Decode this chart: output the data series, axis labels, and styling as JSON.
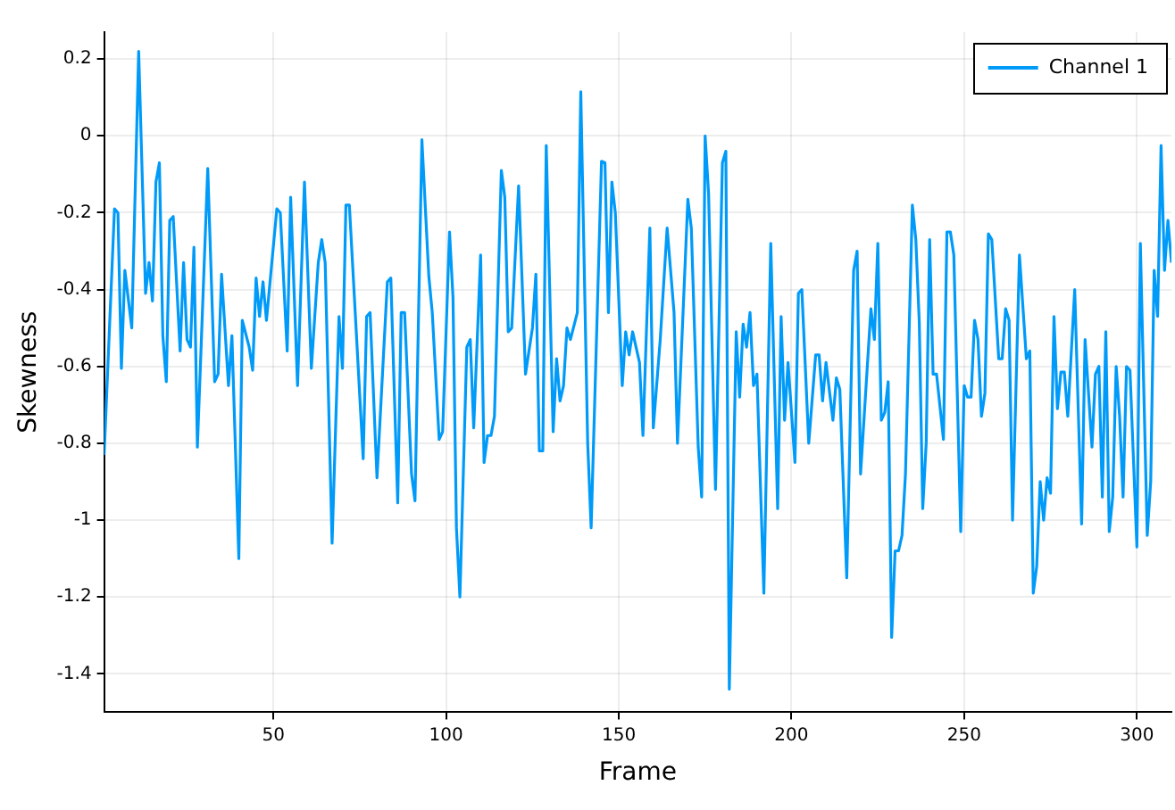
{
  "chart_data": {
    "type": "line",
    "xlabel": "Frame",
    "ylabel": "Skewness",
    "xlim": [
      1,
      310
    ],
    "xticks": [
      50,
      100,
      150,
      200,
      250,
      300
    ],
    "ylim": [
      -1.5,
      0.27
    ],
    "yticks": [
      -1.4,
      -1.2,
      -1,
      -0.8,
      -0.6,
      -0.4,
      -0.2,
      0,
      0.2
    ],
    "grid": true,
    "legend": "top right",
    "marker": "none",
    "line_style": "solid",
    "series": [
      {
        "name": "Channel 1",
        "color": "#009af9",
        "x": [
          1,
          4,
          5,
          6,
          7,
          9,
          11,
          13,
          14,
          15,
          16,
          17,
          18,
          19,
          20,
          21,
          23,
          24,
          25,
          26,
          27,
          28,
          31,
          33,
          34,
          35,
          37,
          38,
          40,
          41,
          43,
          44,
          45,
          46,
          47,
          48,
          51,
          52,
          54,
          55,
          57,
          59,
          61,
          63,
          64,
          65,
          67,
          69,
          70,
          71,
          72,
          76,
          77,
          78,
          80,
          83,
          84,
          86,
          87,
          88,
          90,
          91,
          93,
          95,
          96,
          98,
          99,
          101,
          102,
          103,
          104,
          106,
          107,
          108,
          110,
          111,
          112,
          113,
          114,
          116,
          117,
          118,
          119,
          121,
          123,
          125,
          126,
          127,
          128,
          129,
          131,
          132,
          133,
          134,
          135,
          136,
          138,
          139,
          141,
          142,
          145,
          146,
          147,
          148,
          149,
          151,
          152,
          153,
          154,
          156,
          157,
          159,
          160,
          162,
          164,
          166,
          167,
          170,
          171,
          173,
          174,
          175,
          176,
          178,
          180,
          181,
          182,
          184,
          185,
          186,
          187,
          188,
          189,
          190,
          192,
          194,
          196,
          197,
          198,
          199,
          201,
          202,
          203,
          205,
          207,
          208,
          209,
          210,
          212,
          213,
          214,
          216,
          218,
          219,
          220,
          223,
          224,
          225,
          226,
          227,
          228,
          229,
          230,
          231,
          232,
          233,
          235,
          236,
          237,
          238,
          239,
          240,
          241,
          242,
          244,
          245,
          246,
          247,
          249,
          250,
          251,
          252,
          253,
          254,
          255,
          256,
          257,
          258,
          260,
          261,
          262,
          263,
          264,
          266,
          268,
          269,
          270,
          271,
          272,
          273,
          274,
          275,
          276,
          277,
          278,
          279,
          280,
          282,
          284,
          285,
          287,
          288,
          289,
          290,
          291,
          292,
          293,
          294,
          295,
          296,
          297,
          298,
          300,
          301,
          303,
          304,
          305,
          306,
          307,
          308,
          309,
          310
        ],
        "values": [
          -0.83,
          -0.19,
          -0.2,
          -0.605,
          -0.35,
          -0.5,
          0.22,
          -0.41,
          -0.33,
          -0.43,
          -0.12,
          -0.07,
          -0.52,
          -0.64,
          -0.22,
          -0.21,
          -0.56,
          -0.33,
          -0.53,
          -0.55,
          -0.29,
          -0.81,
          -0.085,
          -0.64,
          -0.62,
          -0.36,
          -0.65,
          -0.52,
          -1.1,
          -0.48,
          -0.55,
          -0.61,
          -0.37,
          -0.47,
          -0.38,
          -0.48,
          -0.19,
          -0.2,
          -0.56,
          -0.16,
          -0.65,
          -0.12,
          -0.605,
          -0.33,
          -0.27,
          -0.33,
          -1.06,
          -0.47,
          -0.605,
          -0.18,
          -0.18,
          -0.84,
          -0.47,
          -0.46,
          -0.89,
          -0.38,
          -0.37,
          -0.955,
          -0.46,
          -0.46,
          -0.88,
          -0.95,
          -0.01,
          -0.365,
          -0.46,
          -0.79,
          -0.77,
          -0.25,
          -0.42,
          -1.02,
          -1.2,
          -0.55,
          -0.53,
          -0.76,
          -0.31,
          -0.85,
          -0.78,
          -0.78,
          -0.73,
          -0.09,
          -0.16,
          -0.51,
          -0.5,
          -0.13,
          -0.62,
          -0.5,
          -0.36,
          -0.82,
          -0.82,
          -0.025,
          -0.77,
          -0.58,
          -0.69,
          -0.65,
          -0.5,
          -0.53,
          -0.46,
          0.115,
          -0.8,
          -1.02,
          -0.066,
          -0.07,
          -0.46,
          -0.12,
          -0.2,
          -0.65,
          -0.51,
          -0.57,
          -0.51,
          -0.59,
          -0.78,
          -0.24,
          -0.76,
          -0.53,
          -0.24,
          -0.46,
          -0.8,
          -0.165,
          -0.24,
          -0.81,
          -0.94,
          0,
          -0.15,
          -0.92,
          -0.07,
          -0.04,
          -1.44,
          -0.51,
          -0.68,
          -0.49,
          -0.55,
          -0.46,
          -0.65,
          -0.62,
          -1.19,
          -0.28,
          -0.97,
          -0.47,
          -0.74,
          -0.59,
          -0.85,
          -0.41,
          -0.4,
          -0.8,
          -0.57,
          -0.57,
          -0.69,
          -0.59,
          -0.74,
          -0.63,
          -0.66,
          -1.15,
          -0.35,
          -0.3,
          -0.88,
          -0.45,
          -0.53,
          -0.28,
          -0.74,
          -0.72,
          -0.64,
          -1.305,
          -1.08,
          -1.08,
          -1.04,
          -0.88,
          -0.18,
          -0.27,
          -0.485,
          -0.97,
          -0.8,
          -0.27,
          -0.62,
          -0.62,
          -0.79,
          -0.25,
          -0.25,
          -0.31,
          -1.03,
          -0.65,
          -0.68,
          -0.68,
          -0.48,
          -0.53,
          -0.73,
          -0.67,
          -0.255,
          -0.27,
          -0.58,
          -0.58,
          -0.45,
          -0.48,
          -1,
          -0.31,
          -0.58,
          -0.56,
          -1.19,
          -1.12,
          -0.9,
          -1,
          -0.89,
          -0.93,
          -0.47,
          -0.71,
          -0.615,
          -0.615,
          -0.73,
          -0.4,
          -1.01,
          -0.53,
          -0.81,
          -0.62,
          -0.6,
          -0.94,
          -0.51,
          -1.03,
          -0.94,
          -0.6,
          -0.73,
          -0.94,
          -0.6,
          -0.61,
          -1.07,
          -0.28,
          -1.04,
          -0.9,
          -0.35,
          -0.47,
          -0.025,
          -0.35,
          -0.22,
          -0.33
        ]
      }
    ]
  }
}
